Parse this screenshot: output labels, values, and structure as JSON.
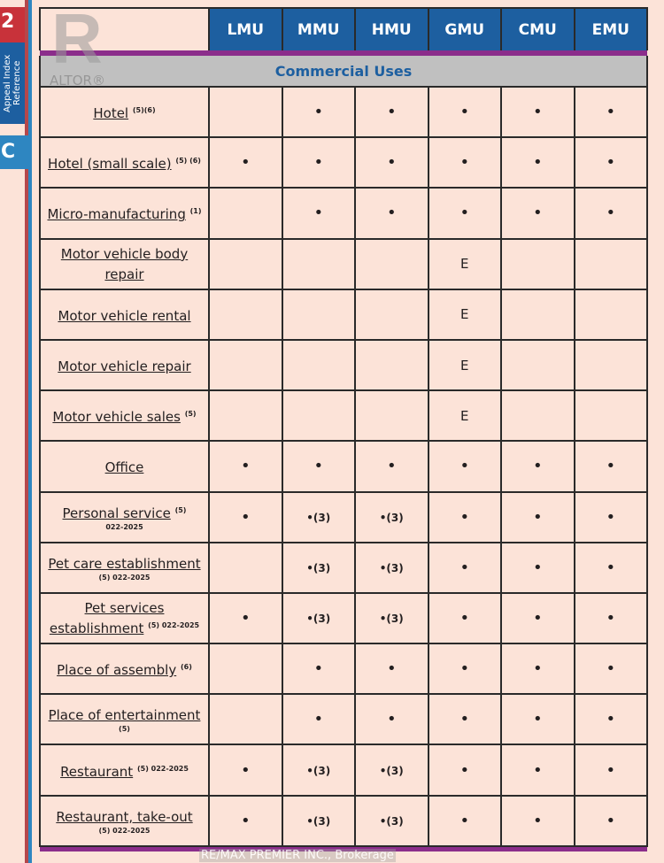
{
  "side": {
    "page_num": "2",
    "tab_label": "Appeal Index Reference",
    "section_letter": "C"
  },
  "logo": {
    "letter": "R",
    "text": "REALTOR®"
  },
  "watermark": "RE/MAX PREMIER INC., Brokerage",
  "columns": [
    "LMU",
    "MMU",
    "HMU",
    "GMU",
    "CMU",
    "EMU"
  ],
  "section_title": "Commercial Uses",
  "rows": [
    {
      "use": "Hotel",
      "sup": "(5)(6)",
      "note": "",
      "cells": [
        "",
        "•",
        "•",
        "•",
        "•",
        "•"
      ]
    },
    {
      "use": "Hotel (small scale)",
      "sup": "(5) (6)",
      "note": "",
      "cells": [
        "•",
        "•",
        "•",
        "•",
        "•",
        "•"
      ]
    },
    {
      "use": "Micro-manufacturing",
      "sup": "(1)",
      "note": "",
      "cells": [
        "",
        "•",
        "•",
        "•",
        "•",
        "•"
      ]
    },
    {
      "use": "Motor vehicle body repair",
      "sup": "",
      "note": "",
      "cells": [
        "",
        "",
        "",
        "E",
        "",
        ""
      ]
    },
    {
      "use": "Motor vehicle rental",
      "sup": "",
      "note": "",
      "cells": [
        "",
        "",
        "",
        "E",
        "",
        ""
      ]
    },
    {
      "use": "Motor vehicle repair",
      "sup": "",
      "note": "",
      "cells": [
        "",
        "",
        "",
        "E",
        "",
        ""
      ]
    },
    {
      "use": "Motor vehicle sales",
      "sup": "(5)",
      "note": "",
      "cells": [
        "",
        "",
        "",
        "E",
        "",
        ""
      ]
    },
    {
      "use": "Office",
      "sup": "",
      "note": "",
      "cells": [
        "•",
        "•",
        "•",
        "•",
        "•",
        "•"
      ]
    },
    {
      "use": "Personal service",
      "sup": "(5)",
      "note": "022-2025",
      "cells": [
        "•",
        "•(3)",
        "•(3)",
        "•",
        "•",
        "•"
      ]
    },
    {
      "use": "Pet care establishment",
      "sup": "",
      "note": "(5) 022-2025",
      "cells": [
        "",
        "•(3)",
        "•(3)",
        "•",
        "•",
        "•"
      ]
    },
    {
      "use": "Pet services establishment",
      "sup": "(5) 022-2025",
      "note": "",
      "cells": [
        "•",
        "•(3)",
        "•(3)",
        "•",
        "•",
        "•"
      ]
    },
    {
      "use": "Place of assembly",
      "sup": "(6)",
      "note": "",
      "cells": [
        "",
        "•",
        "•",
        "•",
        "•",
        "•"
      ]
    },
    {
      "use": "Place of entertainment",
      "sup": "",
      "note": "(5)",
      "cells": [
        "",
        "•",
        "•",
        "•",
        "•",
        "•"
      ]
    },
    {
      "use": "Restaurant",
      "sup": "(5) 022-2025",
      "note": "",
      "cells": [
        "•",
        "•(3)",
        "•(3)",
        "•",
        "•",
        "•"
      ]
    },
    {
      "use": "Restaurant, take-out",
      "sup": "",
      "note": "(5) 022-2025",
      "cells": [
        "•",
        "•(3)",
        "•(3)",
        "•",
        "•",
        "•"
      ]
    }
  ]
}
